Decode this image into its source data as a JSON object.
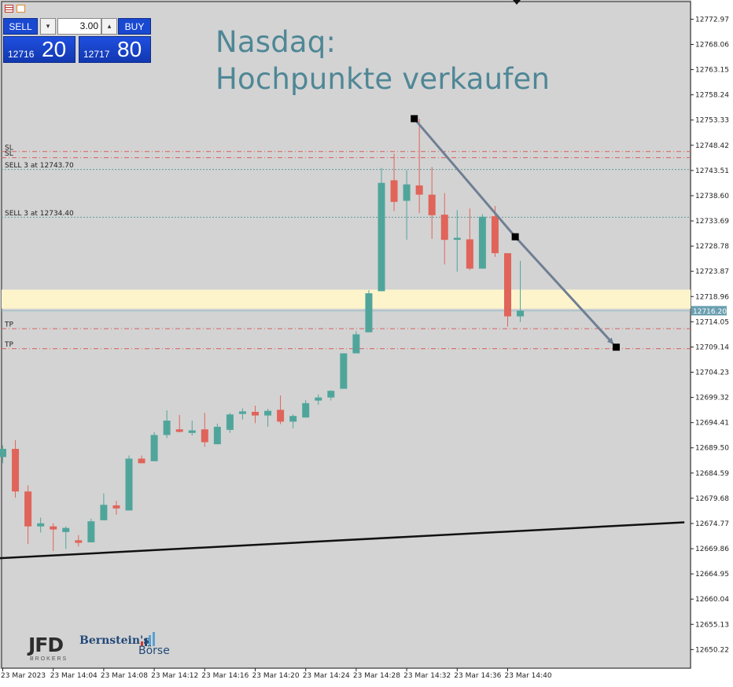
{
  "headline": {
    "line1": "Nasdaq:",
    "line2": "Hochpunkte verkaufen"
  },
  "trade_panel": {
    "sell_label": "SELL",
    "buy_label": "BUY",
    "volume": "3.00",
    "sell_price_small": "12716",
    "sell_price_big": "20",
    "buy_price_small": "12717",
    "buy_price_big": "80"
  },
  "logos": {
    "jfd_text": "JFD",
    "jfd_sub": "BROKERS",
    "bernstein_text": "Bernstein's",
    "boerse_text": "Börse"
  },
  "chart_data": {
    "type": "candlestick",
    "y_ticks": [
      "12772.97",
      "12768.06",
      "12763.15",
      "12758.24",
      "12753.33",
      "12748.42",
      "12743.51",
      "12738.60",
      "12733.69",
      "12728.78",
      "12723.87",
      "12718.96",
      "12714.05",
      "12709.14",
      "12704.23",
      "12699.32",
      "12694.41",
      "12689.50",
      "12684.59",
      "12679.68",
      "12674.77",
      "12669.86",
      "12664.95",
      "12660.04",
      "12655.13",
      "12650.22"
    ],
    "ylim": [
      12646.6,
      12776.4
    ],
    "x_ticks": [
      "23 Mar 2023",
      "23 Mar 14:04",
      "23 Mar 14:08",
      "23 Mar 14:12",
      "23 Mar 14:16",
      "23 Mar 14:20",
      "23 Mar 14:24",
      "23 Mar 14:28",
      "23 Mar 14:32",
      "23 Mar 14:36",
      "23 Mar 14:40"
    ],
    "current_price": "12716.20",
    "colors": {
      "up": "#50a59b",
      "down": "#e0645a",
      "level_sl_tp": "#d96060",
      "level_entry": "#5f9e9a",
      "zone": "#fdf4cc",
      "arrow": "#6f7f93"
    },
    "candles": [
      {
        "o": 12687.7,
        "h": 12690.0,
        "l": 12686.5,
        "c": 12689.3
      },
      {
        "o": 12689.3,
        "h": 12691.0,
        "l": 12679.8,
        "c": 12681.0
      },
      {
        "o": 12681.0,
        "h": 12682.2,
        "l": 12670.8,
        "c": 12674.2
      },
      {
        "o": 12674.2,
        "h": 12675.9,
        "l": 12673.0,
        "c": 12674.8
      },
      {
        "o": 12674.2,
        "h": 12674.8,
        "l": 12669.4,
        "c": 12673.6
      },
      {
        "o": 12673.1,
        "h": 12674.2,
        "l": 12669.8,
        "c": 12673.9
      },
      {
        "o": 12671.5,
        "h": 12672.5,
        "l": 12670.3,
        "c": 12671.0
      },
      {
        "o": 12671.1,
        "h": 12675.7,
        "l": 12671.1,
        "c": 12675.2
      },
      {
        "o": 12675.4,
        "h": 12680.6,
        "l": 12675.4,
        "c": 12678.4
      },
      {
        "o": 12678.3,
        "h": 12679.2,
        "l": 12676.5,
        "c": 12677.7
      },
      {
        "o": 12677.3,
        "h": 12688.0,
        "l": 12677.3,
        "c": 12687.4
      },
      {
        "o": 12687.4,
        "h": 12688.0,
        "l": 12686.5,
        "c": 12686.5
      },
      {
        "o": 12686.9,
        "h": 12692.6,
        "l": 12686.9,
        "c": 12692.0
      },
      {
        "o": 12692.0,
        "h": 12696.8,
        "l": 12691.4,
        "c": 12694.8
      },
      {
        "o": 12693.1,
        "h": 12695.9,
        "l": 12692.5,
        "c": 12692.6
      },
      {
        "o": 12692.4,
        "h": 12694.8,
        "l": 12691.9,
        "c": 12692.9
      },
      {
        "o": 12693.1,
        "h": 12696.3,
        "l": 12689.7,
        "c": 12690.6
      },
      {
        "o": 12690.2,
        "h": 12694.2,
        "l": 12690.2,
        "c": 12693.6
      },
      {
        "o": 12693.0,
        "h": 12696.3,
        "l": 12692.4,
        "c": 12696.0
      },
      {
        "o": 12696.1,
        "h": 12697.2,
        "l": 12695.0,
        "c": 12696.6
      },
      {
        "o": 12696.5,
        "h": 12697.7,
        "l": 12694.3,
        "c": 12695.8
      },
      {
        "o": 12695.8,
        "h": 12697.1,
        "l": 12693.6,
        "c": 12696.7
      },
      {
        "o": 12696.9,
        "h": 12699.7,
        "l": 12694.1,
        "c": 12694.6
      },
      {
        "o": 12694.6,
        "h": 12696.0,
        "l": 12693.3,
        "c": 12695.7
      },
      {
        "o": 12695.4,
        "h": 12698.8,
        "l": 12695.4,
        "c": 12698.2
      },
      {
        "o": 12698.7,
        "h": 12699.9,
        "l": 12697.9,
        "c": 12699.3
      },
      {
        "o": 12699.3,
        "h": 12700.7,
        "l": 12698.7,
        "c": 12700.6
      },
      {
        "o": 12701.0,
        "h": 12707.9,
        "l": 12701.0,
        "c": 12707.9
      },
      {
        "o": 12707.9,
        "h": 12712.2,
        "l": 12707.9,
        "c": 12711.6
      },
      {
        "o": 12712.0,
        "h": 12720.2,
        "l": 12712.0,
        "c": 12719.6
      },
      {
        "o": 12720.0,
        "h": 12744.0,
        "l": 12720.0,
        "c": 12741.1
      },
      {
        "o": 12741.6,
        "h": 12746.8,
        "l": 12735.6,
        "c": 12737.4
      },
      {
        "o": 12737.6,
        "h": 12743.6,
        "l": 12730.0,
        "c": 12740.8
      },
      {
        "o": 12740.6,
        "h": 12753.6,
        "l": 12735.2,
        "c": 12738.8
      },
      {
        "o": 12738.8,
        "h": 12744.2,
        "l": 12730.2,
        "c": 12734.8
      },
      {
        "o": 12734.9,
        "h": 12739.1,
        "l": 12725.2,
        "c": 12730.0
      },
      {
        "o": 12730.0,
        "h": 12735.8,
        "l": 12723.8,
        "c": 12730.4
      },
      {
        "o": 12730.1,
        "h": 12736.1,
        "l": 12724.1,
        "c": 12724.4
      },
      {
        "o": 12724.4,
        "h": 12735.0,
        "l": 12724.4,
        "c": 12734.5
      },
      {
        "o": 12734.6,
        "h": 12736.6,
        "l": 12726.7,
        "c": 12727.4
      },
      {
        "o": 12727.4,
        "h": 12727.4,
        "l": 12713.1,
        "c": 12715.1
      },
      {
        "o": 12715.1,
        "h": 12725.9,
        "l": 12714.0,
        "c": 12716.2
      }
    ],
    "levels": [
      {
        "label": "SL",
        "price": 12747.2,
        "kind": "sl"
      },
      {
        "label": "SL",
        "price": 12746.0,
        "kind": "sl"
      },
      {
        "label": "SELL 3 at 12743.70",
        "price": 12743.7,
        "kind": "entry"
      },
      {
        "label": "SELL 3 at 12734.40",
        "price": 12734.4,
        "kind": "entry"
      },
      {
        "label": "TP",
        "price": 12712.7,
        "kind": "tp"
      },
      {
        "label": "TP",
        "price": 12708.8,
        "kind": "tp"
      }
    ],
    "zone": {
      "from": 12716.6,
      "to": 12720.3
    },
    "trendline": {
      "x1": -1,
      "y1": 12667.9,
      "x2": 54,
      "y2": 12675.0
    },
    "arrow": [
      {
        "x": 32.6,
        "y": 12753.6
      },
      {
        "x": 40.6,
        "y": 12730.6
      },
      {
        "x": 48.6,
        "y": 12709.1
      }
    ]
  }
}
